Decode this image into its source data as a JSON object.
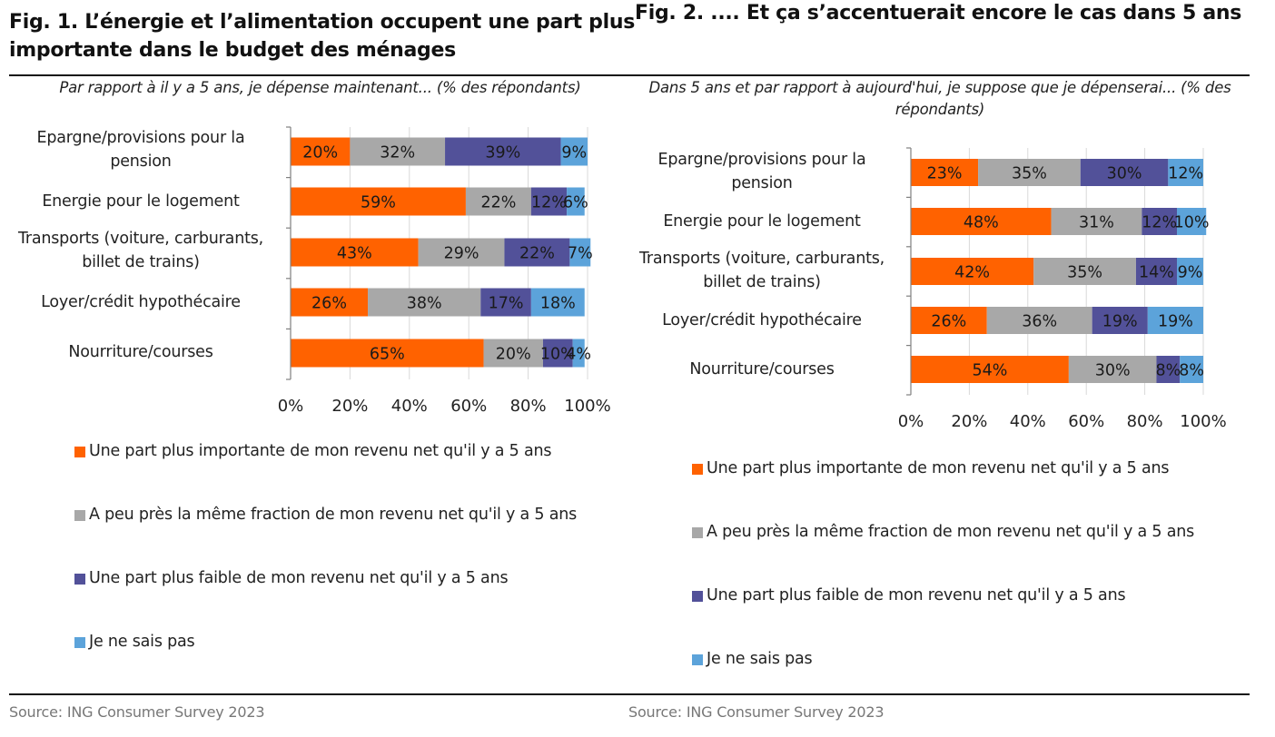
{
  "colors": {
    "more": "#FF6200",
    "same": "#A8A8A8",
    "less": "#525199",
    "dont_know": "#5CA3DA",
    "grid": "#D9D9D9",
    "axis": "#808080"
  },
  "fig1": {
    "title": "Fig. 1. L’énergie et l’alimentation occupent une part plus importante dans le budget des ménages",
    "subtitle": "Par rapport à il y a 5 ans, je dépense maintenant... (% des répondants)",
    "source": "Source: ING Consumer Survey 2023"
  },
  "fig2": {
    "title": "Fig. 2. .... Et ça s’accentuerait encore le cas dans 5 ans",
    "subtitle": "Dans 5 ans et par rapport à aujourd'hui, je suppose que je dépenserai... (% des répondants)",
    "source": "Source: ING Consumer Survey 2023"
  },
  "chart_data": [
    {
      "type": "bar",
      "orientation": "horizontal",
      "stacked": "percent",
      "title": "Fig. 1. L’énergie et l’alimentation occupent une part plus importante dans le budget des ménages",
      "subtitle": "Par rapport à il y a 5 ans, je dépense maintenant... (% des répondants)",
      "categories": [
        "Epargne/provisions pour la pension",
        "Energie pour le logement",
        "Transports (voiture, carburants, billet de trains)",
        "Loyer/crédit hypothécaire",
        "Nourriture/courses"
      ],
      "series": [
        {
          "name": "Une part plus importante de mon revenu net qu'il y a 5 ans",
          "key": "more",
          "values": [
            20,
            59,
            43,
            26,
            65
          ]
        },
        {
          "name": "A peu près la même fraction de mon revenu net qu'il y a 5 ans",
          "key": "same",
          "values": [
            32,
            22,
            29,
            38,
            20
          ]
        },
        {
          "name": "Une part plus faible de mon revenu net qu'il y a 5 ans",
          "key": "less",
          "values": [
            39,
            12,
            22,
            17,
            10
          ]
        },
        {
          "name": "Je ne sais pas",
          "key": "dont_know",
          "values": [
            9,
            6,
            7,
            18,
            4
          ]
        }
      ],
      "xticks": [
        "0%",
        "20%",
        "40%",
        "60%",
        "80%",
        "100%"
      ],
      "xlim": [
        0,
        100
      ],
      "xlabel": "",
      "ylabel": "",
      "grid": true,
      "legend_position": "bottom",
      "data_labels": true
    },
    {
      "type": "bar",
      "orientation": "horizontal",
      "stacked": "percent",
      "title": "Fig. 2. .... Et ça s’accentuerait encore le cas dans 5 ans",
      "subtitle": "Dans 5 ans et par rapport à aujourd'hui, je suppose que je dépenserai... (% des répondants)",
      "categories": [
        "Epargne/provisions pour la pension",
        "Energie pour le logement",
        "Transports (voiture, carburants, billet de trains)",
        "Loyer/crédit hypothécaire",
        "Nourriture/courses"
      ],
      "series": [
        {
          "name": "Une part plus importante de mon revenu net qu'il y a 5 ans",
          "key": "more",
          "values": [
            23,
            48,
            42,
            26,
            54
          ]
        },
        {
          "name": "A peu près la même fraction de mon revenu net qu'il y a 5 ans",
          "key": "same",
          "values": [
            35,
            31,
            35,
            36,
            30
          ]
        },
        {
          "name": "Une part plus faible de mon revenu net qu'il y a 5 ans",
          "key": "less",
          "values": [
            30,
            12,
            14,
            19,
            8
          ]
        },
        {
          "name": "Je ne sais pas",
          "key": "dont_know",
          "values": [
            12,
            10,
            9,
            19,
            8
          ]
        }
      ],
      "xticks": [
        "0%",
        "20%",
        "40%",
        "60%",
        "80%",
        "100%"
      ],
      "xlim": [
        0,
        100
      ],
      "xlabel": "",
      "ylabel": "",
      "grid": true,
      "legend_position": "bottom",
      "data_labels": true
    }
  ]
}
